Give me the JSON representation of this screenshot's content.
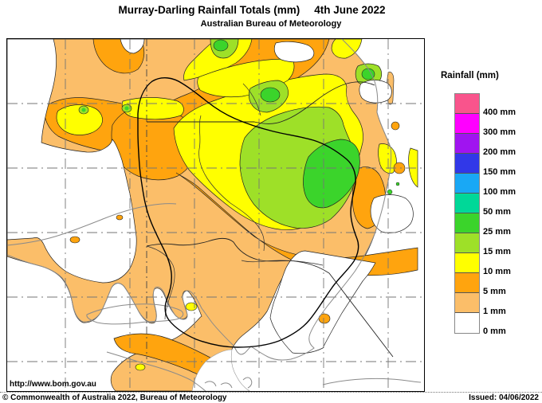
{
  "header": {
    "title": "Murray-Darling Rainfall Totals (mm)",
    "date": "4th June 2022",
    "subtitle": "Australian Bureau of Meteorology"
  },
  "legend": {
    "title": "Rainfall (mm)",
    "items": [
      {
        "label": "400 mm",
        "color": "#F9548C"
      },
      {
        "label": "300 mm",
        "color": "#FF00FF"
      },
      {
        "label": "200 mm",
        "color": "#A014F0"
      },
      {
        "label": "150 mm",
        "color": "#3138E8"
      },
      {
        "label": "100 mm",
        "color": "#19A8F5"
      },
      {
        "label": "50 mm",
        "color": "#00D898"
      },
      {
        "label": "25 mm",
        "color": "#3BD42B"
      },
      {
        "label": "15 mm",
        "color": "#9EE028"
      },
      {
        "label": "10 mm",
        "color": "#FFFF00"
      },
      {
        "label": "5 mm",
        "color": "#FFA40E"
      },
      {
        "label": "1 mm",
        "color": "#FBBE69"
      },
      {
        "label": "0 mm",
        "color": "#FFFFFF"
      }
    ]
  },
  "map": {
    "palette": {
      "rain_400_plus": "#F9548C",
      "rain_300_400": "#FF00FF",
      "rain_200_300": "#A014F0",
      "rain_150_200": "#3138E8",
      "rain_100_150": "#19A8F5",
      "rain_50_100": "#00D898",
      "rain_25_50": "#3BD42B",
      "rain_15_25": "#9EE028",
      "rain_10_15": "#FFFF00",
      "rain_5_10": "#FFA40E",
      "rain_1_5": "#FBBE69",
      "rain_0_1": "#FFFFFF"
    }
  },
  "footer": {
    "url": "http://www.bom.gov.au",
    "copyright": "© Commonwealth of Australia 2022, Bureau of Meteorology",
    "issued": "Issued: 04/06/2022"
  }
}
